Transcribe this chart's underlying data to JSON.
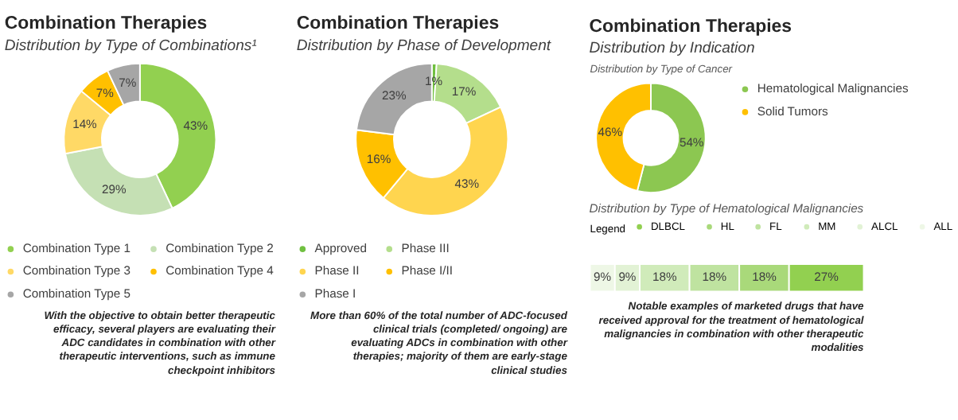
{
  "chart_data": [
    {
      "type": "donut",
      "title": "Combination Therapies",
      "subtitle": "Distribution by Type of Combinations¹",
      "categories": [
        "Combination Type 1",
        "Combination Type 2",
        "Combination Type 3",
        "Combination Type 4",
        "Combination Type 5"
      ],
      "values": [
        43,
        29,
        14,
        7,
        7
      ],
      "value_labels": [
        "43%",
        "29%",
        "14%",
        "7%",
        "7%"
      ],
      "colors": [
        "#92d050",
        "#c5e0b4",
        "#ffd966",
        "#ffc000",
        "#a6a6a6"
      ],
      "legend": "bottom",
      "annotations": [
        "With the objective to obtain better therapeutic efficacy, several players are evaluating their ADC candidates in combination with other therapeutic interventions, such as immune checkpoint inhibitors"
      ]
    },
    {
      "type": "donut",
      "title": "Combination Therapies",
      "subtitle": "Distribution by Phase of Development",
      "categories": [
        "Approved",
        "Phase III",
        "Phase II",
        "Phase I/II",
        "Phase I"
      ],
      "values": [
        1,
        17,
        43,
        16,
        23
      ],
      "value_labels": [
        "1%",
        "17%",
        "43%",
        "16%",
        "23%"
      ],
      "colors": [
        "#70c040",
        "#b4de8c",
        "#ffd54f",
        "#ffc000",
        "#a6a6a6"
      ],
      "legend": "bottom",
      "annotations": [
        "More than 60% of the total number of ADC-focused clinical trials (completed/ ongoing) are evaluating ADCs in combination with other therapies; majority of them are early-stage clinical studies"
      ]
    },
    {
      "type": "donut",
      "title": "Combination Therapies",
      "subtitle": "Distribution by Indication",
      "categories": [
        "Hematological Malignancies",
        "Solid Tumors"
      ],
      "values": [
        54,
        46
      ],
      "value_labels": [
        "54%",
        "46%"
      ],
      "colors": [
        "#8cc751",
        "#ffc000"
      ],
      "legend": "right",
      "annotations": [
        "Distribution by Type of Cancer"
      ]
    },
    {
      "type": "bar",
      "orientation": "horizontal",
      "stacked": true,
      "title": "Distribution by Type of Hematological Malignancies",
      "legend_title": "Legend",
      "legend": "top",
      "tick_labels": false,
      "categories": [
        null
      ],
      "series": [
        {
          "name": "ALL",
          "color": "#eef7e6",
          "values": [
            9
          ],
          "value_labels": [
            "9%"
          ]
        },
        {
          "name": "ALCL",
          "color": "#e2f2d5",
          "values": [
            9
          ],
          "value_labels": [
            "9%"
          ]
        },
        {
          "name": "MM",
          "color": "#d0ebba",
          "values": [
            18
          ],
          "value_labels": [
            "18%"
          ]
        },
        {
          "name": "FL",
          "color": "#bfe3a0",
          "values": [
            18
          ],
          "value_labels": [
            "18%"
          ]
        },
        {
          "name": "HL",
          "color": "#a9d97a",
          "values": [
            18
          ],
          "value_labels": [
            "18%"
          ]
        },
        {
          "name": "DLBCL",
          "color": "#92d050",
          "values": [
            27
          ],
          "value_labels": [
            "27%"
          ]
        }
      ],
      "annotations": [
        "Notable examples of marketed drugs that have received approval for the treatment of hematological malignancies in combination with other therapeutic modalities"
      ]
    }
  ]
}
